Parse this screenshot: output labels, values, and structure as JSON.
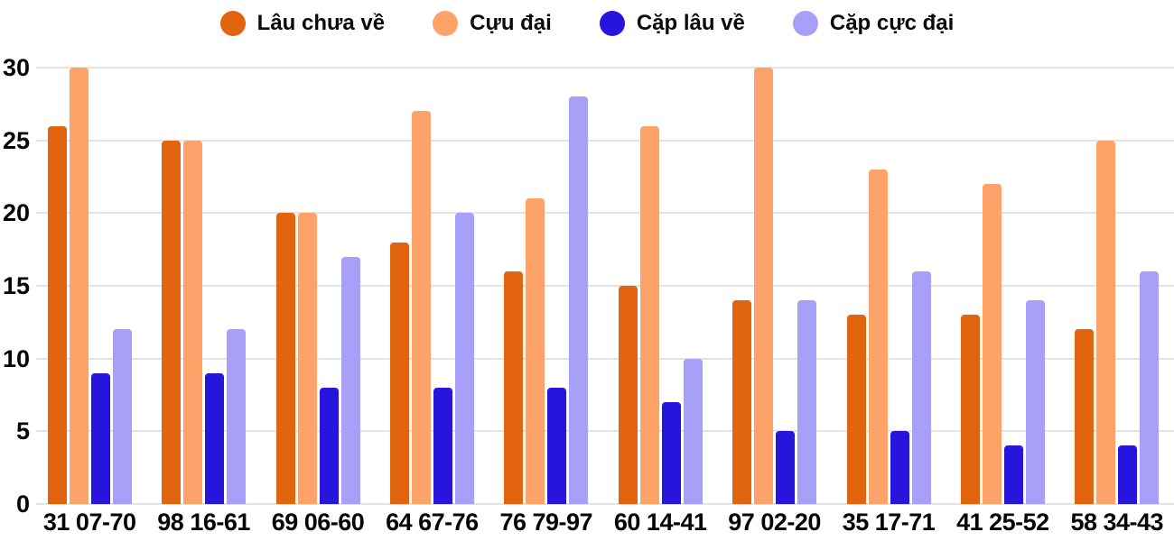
{
  "chart_data": {
    "type": "bar",
    "title": "",
    "xlabel": "",
    "ylabel": "",
    "grid": true,
    "legend_position": "top",
    "background_color": "#FFFFFF",
    "gridline_color": "#E3E3E3",
    "text_color": "#0A0A0A",
    "ylim": [
      0,
      30
    ],
    "y_ticks": [
      0,
      5,
      10,
      15,
      20,
      25,
      30
    ],
    "categories": [
      "31 07-70",
      "98 16-61",
      "69 06-60",
      "64 67-76",
      "76 79-97",
      "60 14-41",
      "97 02-20",
      "35 17-71",
      "41 25-52",
      "58 34-43"
    ],
    "series": [
      {
        "name": "Lâu chưa về",
        "color": "#E3640F",
        "values": [
          26,
          25,
          20,
          18,
          16,
          15,
          14,
          13,
          13,
          12
        ]
      },
      {
        "name": "Cựu đại",
        "color": "#FDA369",
        "values": [
          30,
          25,
          20,
          27,
          21,
          26,
          30,
          23,
          22,
          25
        ]
      },
      {
        "name": "Cặp lâu về",
        "color": "#2715DD",
        "values": [
          9,
          9,
          8,
          8,
          8,
          7,
          5,
          5,
          4,
          4
        ]
      },
      {
        "name": "Cặp cực đại",
        "color": "#A8A0F8",
        "values": [
          12,
          12,
          17,
          20,
          28,
          10,
          14,
          16,
          14,
          16
        ]
      }
    ]
  }
}
